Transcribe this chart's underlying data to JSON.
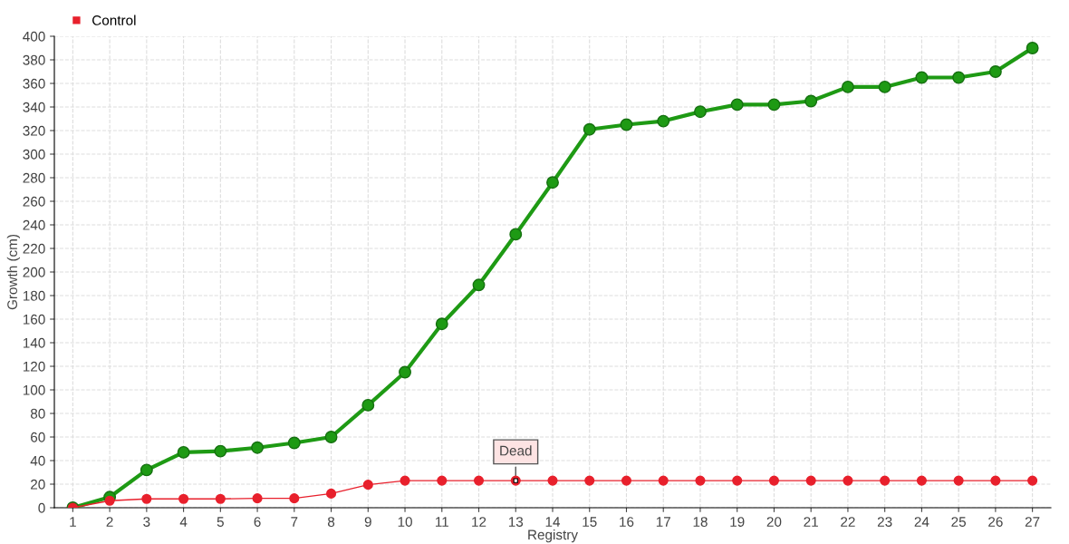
{
  "chart_data": {
    "type": "line",
    "xlabel": "Registry",
    "ylabel": "Growth (cm)",
    "categories": [
      "1",
      "2",
      "3",
      "4",
      "5",
      "6",
      "7",
      "8",
      "9",
      "10",
      "11",
      "12",
      "13",
      "14",
      "15",
      "16",
      "17",
      "18",
      "19",
      "20",
      "21",
      "22",
      "23",
      "24",
      "25",
      "26",
      "27"
    ],
    "series": [
      {
        "color": "#1e9a14",
        "values": [
          0,
          9,
          32,
          47,
          48,
          51,
          55,
          60,
          87,
          115,
          156,
          189,
          232,
          276,
          321,
          325,
          328,
          336,
          342,
          342,
          345,
          357,
          357,
          365,
          365,
          370,
          390
        ]
      },
      {
        "name": "Control",
        "color": "#e8202c",
        "values": [
          0,
          6,
          7.5,
          7.5,
          7.5,
          8,
          8,
          12,
          19.5,
          23,
          23,
          23,
          23,
          23,
          23,
          23,
          23,
          23,
          23,
          23,
          23,
          23,
          23,
          23,
          23,
          23,
          23
        ]
      }
    ],
    "ylim": [
      0,
      400
    ],
    "yticks": [
      0,
      20,
      40,
      60,
      80,
      100,
      120,
      140,
      160,
      180,
      200,
      220,
      240,
      260,
      280,
      300,
      320,
      340,
      360,
      380,
      400
    ],
    "annotations": [
      {
        "text": "Dead",
        "x": "13",
        "y": 23
      }
    ],
    "grid": true,
    "legend": "top left",
    "marker": "circle",
    "line_style": "solid"
  }
}
